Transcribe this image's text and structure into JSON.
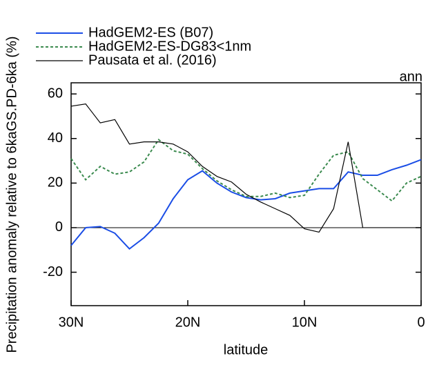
{
  "chart_data": {
    "type": "line",
    "y_label": "Precipitation anomaly relative to 6kaGS.PD-6ka (%)",
    "x_label": "latitude",
    "annotation": "ann",
    "x": [
      30,
      28.75,
      27.5,
      26.25,
      25,
      23.75,
      22.5,
      21.25,
      20,
      18.75,
      17.5,
      16.25,
      15,
      13.75,
      12.5,
      11.25,
      10,
      8.75,
      7.5,
      6.25,
      5,
      3.75,
      2.5,
      1.25,
      0
    ],
    "series": [
      {
        "name": "HadGEM2-ES (B07)",
        "color": "#1a4de6",
        "linestyle": "solid",
        "values": [
          -8,
          0,
          0.5,
          -2.5,
          -9.5,
          -4.5,
          2,
          13,
          21.5,
          25.5,
          20,
          16,
          13.5,
          12.5,
          13,
          15.5,
          16.5,
          17.5,
          17.5,
          25,
          23.5,
          23.5,
          26,
          28,
          30.5
        ]
      },
      {
        "name": "HadGEM2-ES-DG83<1nm",
        "color": "#3a8a4e",
        "linestyle": "dashed",
        "values": [
          31,
          21.5,
          27.5,
          24,
          25,
          29.5,
          39.5,
          34.5,
          33,
          26.5,
          21,
          17,
          14,
          14,
          15.5,
          13.5,
          14.5,
          24,
          32.5,
          34,
          22,
          17,
          12,
          20,
          23
        ]
      },
      {
        "name": "Pausata et al. (2016)",
        "color": "#000000",
        "linestyle": "solid",
        "values": [
          54.5,
          55.5,
          47,
          48.5,
          37.5,
          38.5,
          38.5,
          37.5,
          34,
          27.5,
          23,
          20.5,
          15,
          11.5,
          8.5,
          5.5,
          -0.5,
          -2,
          8.5,
          38.5,
          0,
          0,
          0,
          0,
          0
        ]
      }
    ],
    "xlim": [
      30,
      0
    ],
    "xticks": [
      {
        "value": 30,
        "label": "30N"
      },
      {
        "value": 20,
        "label": "20N"
      },
      {
        "value": 10,
        "label": "10N"
      },
      0
    ],
    "ylim": [
      -35,
      65
    ],
    "yticks": [
      -20,
      0,
      20,
      40,
      60
    ],
    "hline": 0,
    "legend": "top-left"
  }
}
